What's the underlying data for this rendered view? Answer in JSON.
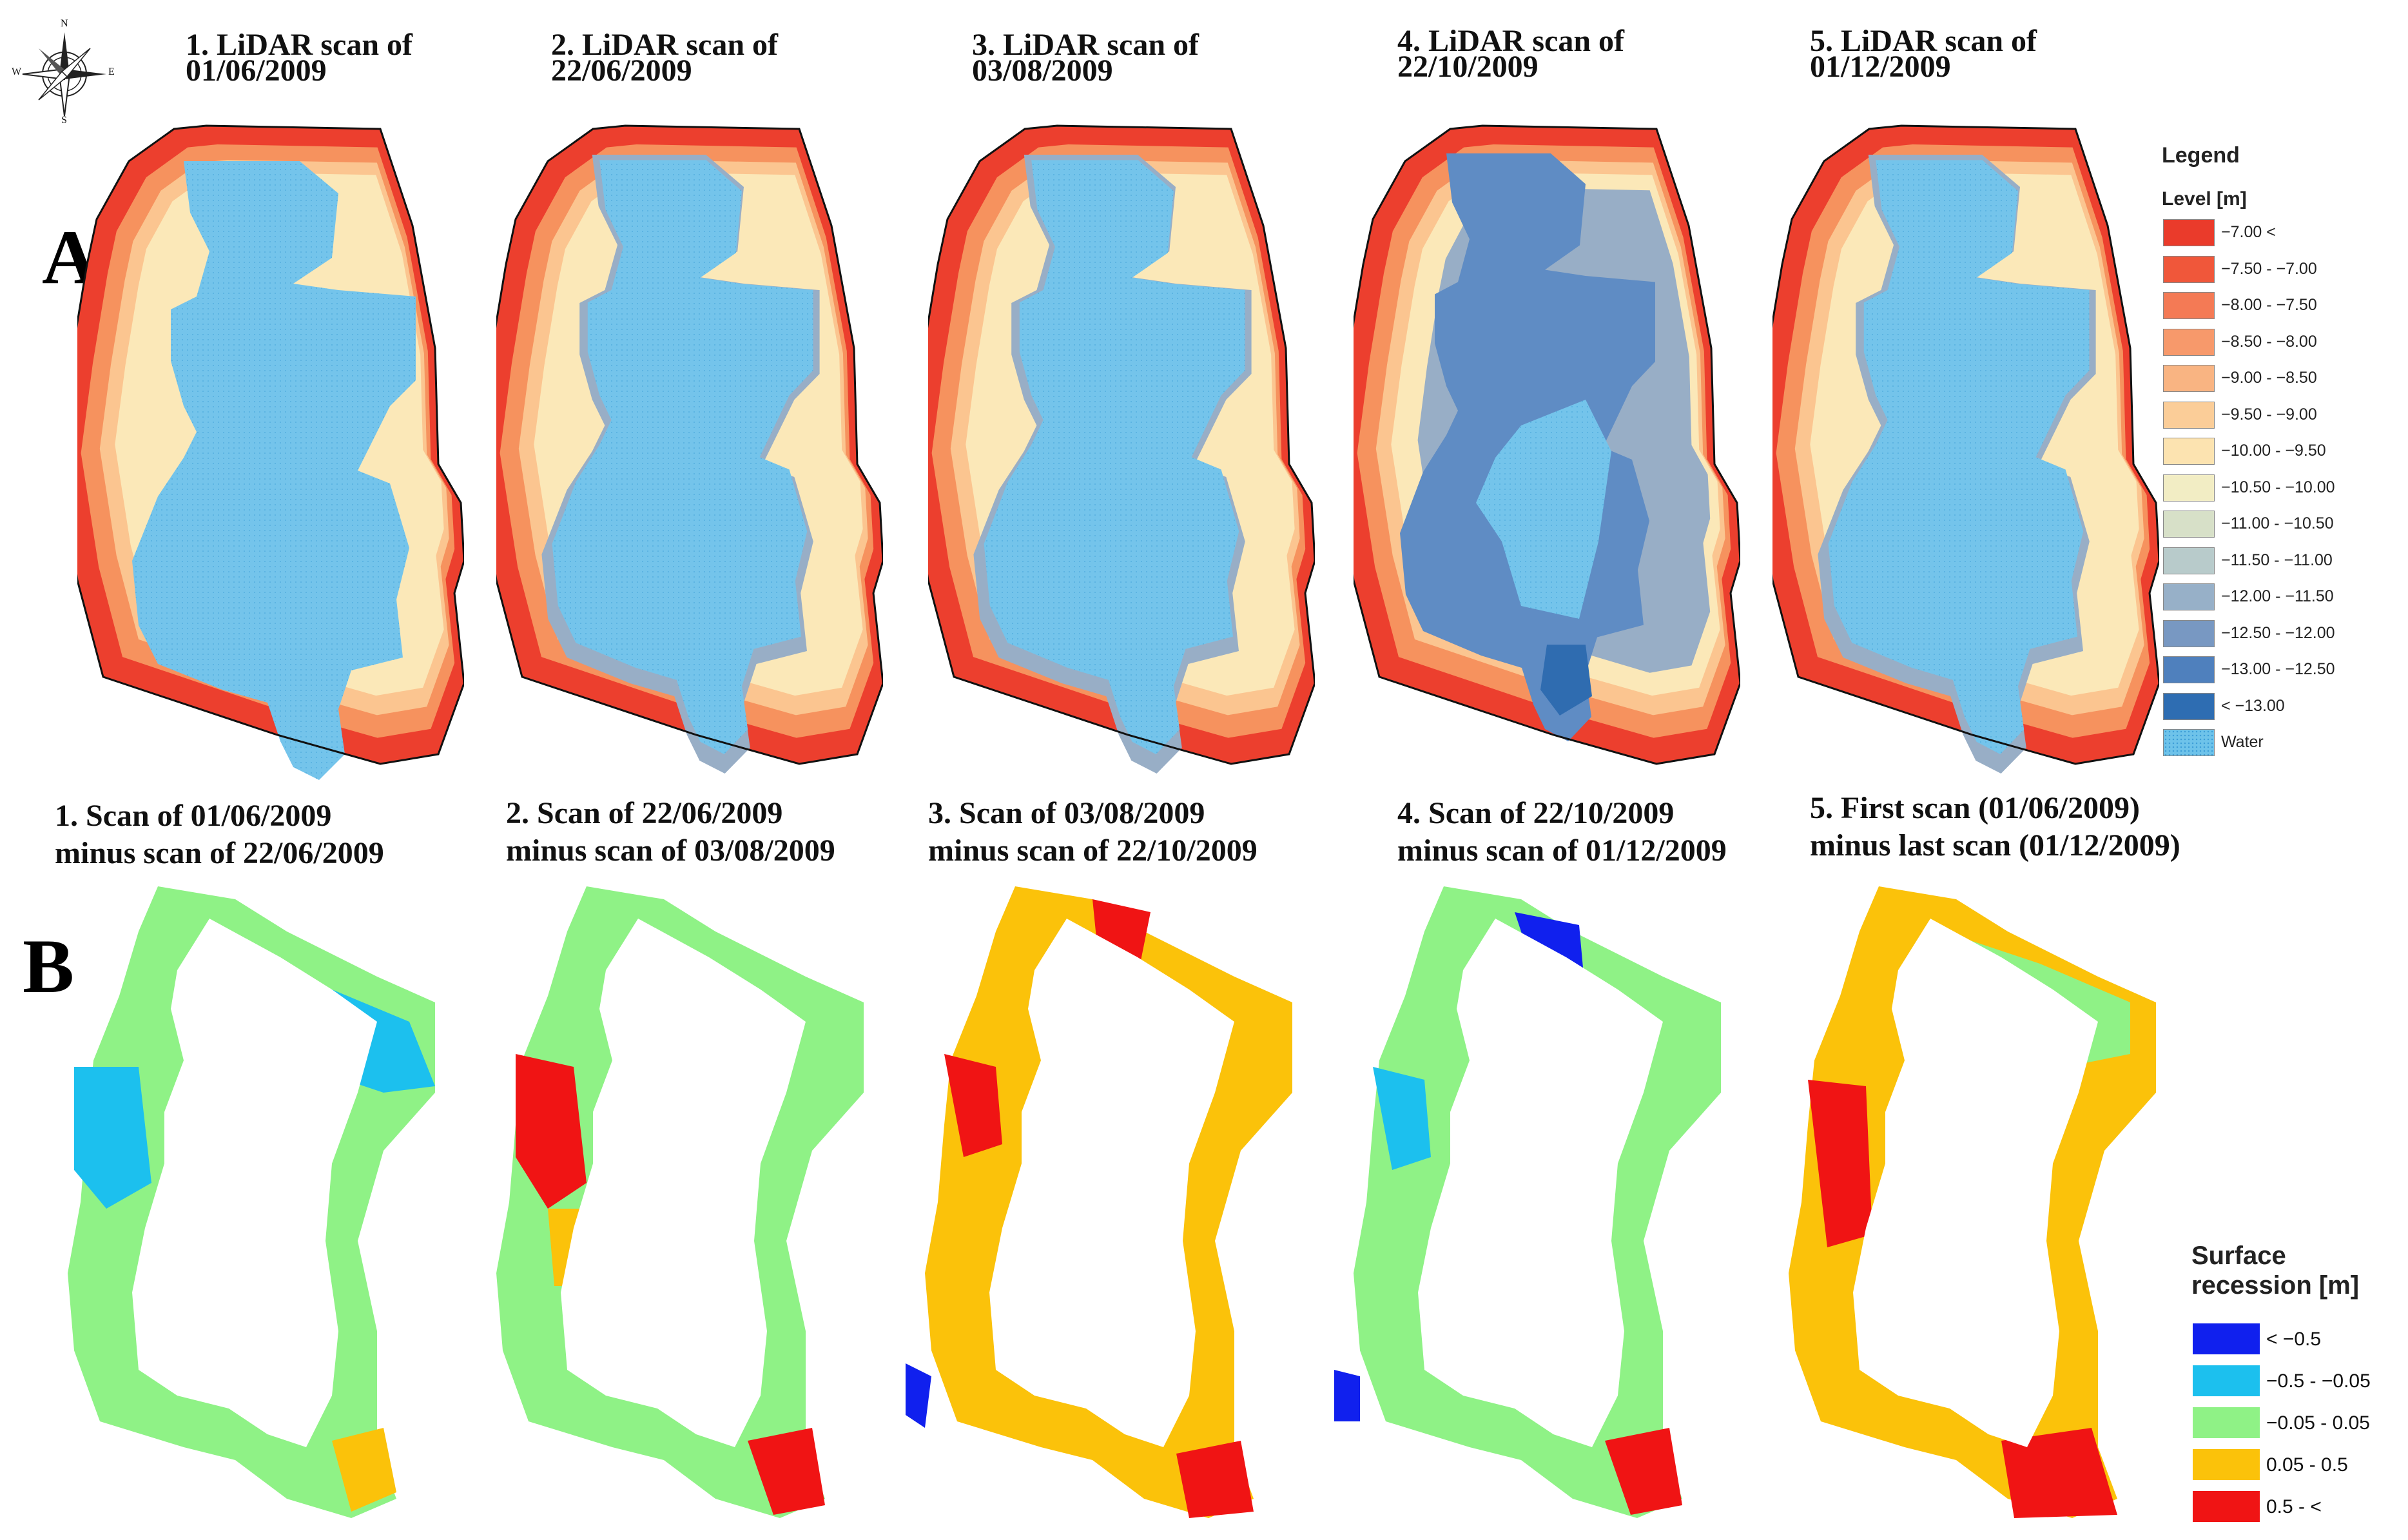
{
  "compass": {
    "n": "N",
    "s": "S",
    "e": "E",
    "w": "W"
  },
  "row_a": {
    "label": "A",
    "panels": [
      {
        "title": "1. LiDAR scan of\n01/06/2009"
      },
      {
        "title": "2. LiDAR scan of\n22/06/2009"
      },
      {
        "title": "3. LiDAR scan of\n03/08/2009"
      },
      {
        "title": "4. LiDAR scan of\n22/10/2009"
      },
      {
        "title": "5. LiDAR scan of\n01/12/2009"
      }
    ]
  },
  "row_b": {
    "label": "B",
    "panels": [
      {
        "title": "1. Scan of  01/06/2009\n minus scan of 22/06/2009"
      },
      {
        "title": "2. Scan of 22/06/2009\n minus scan of 03/08/2009"
      },
      {
        "title": "3. Scan of 03/08/2009\n minus scan of 22/10/2009"
      },
      {
        "title": "4. Scan of  22/10/2009\n minus scan of  01/12/2009"
      },
      {
        "title": "5. First scan (01/06/2009)\n minus last scan (01/12/2009)"
      }
    ]
  },
  "legend_level": {
    "title": "Legend",
    "subtitle": "Level [m]",
    "items": [
      {
        "label": "−7.00 <",
        "color": "#ea3b2b"
      },
      {
        "label": "−7.50 - −7.00",
        "color": "#f0573a"
      },
      {
        "label": "−8.00 - −7.50",
        "color": "#f47a55"
      },
      {
        "label": "−8.50 - −8.00",
        "color": "#f7996b"
      },
      {
        "label": "−9.00 - −8.50",
        "color": "#f9b482"
      },
      {
        "label": "−9.50 - −9.00",
        "color": "#fbcd98"
      },
      {
        "label": "−10.00 - −9.50",
        "color": "#fce3b0"
      },
      {
        "label": "−10.50 - −10.00",
        "color": "#f2edc4"
      },
      {
        "label": "−11.00 - −10.50",
        "color": "#d7e0c8"
      },
      {
        "label": "−11.50 - −11.00",
        "color": "#b8cbcb"
      },
      {
        "label": "−12.00 - −11.50",
        "color": "#97b0c8"
      },
      {
        "label": "−12.50 - −12.00",
        "color": "#7898c2"
      },
      {
        "label": "−13.00 - −12.50",
        "color": "#4f80bd"
      },
      {
        "label": "< −13.00",
        "color": "#2e6db2"
      },
      {
        "label": "Water",
        "color": "#6ec3ea"
      }
    ]
  },
  "legend_recession": {
    "title": "Surface\nrecession [m]",
    "items": [
      {
        "label": "< −0.5",
        "color": "#1020ee"
      },
      {
        "label": "−0.5 - −0.05",
        "color": "#1cc0ee"
      },
      {
        "label": "−0.05 - 0.05",
        "color": "#8ff286"
      },
      {
        "label": "0.05 - 0.5",
        "color": "#fbc20a"
      },
      {
        "label": "0.5 - <",
        "color": "#f01414"
      }
    ]
  },
  "palette": {
    "red": "#ec3f2e",
    "orange": "#f6925e",
    "peach": "#fbc590",
    "cream": "#fbe8b8",
    "water": "#74c4eb",
    "grey_blue": "#98aec6",
    "mid_blue": "#5f8cc4",
    "dark_blue": "#2f6cb0",
    "green": "#8ff286",
    "yellow": "#fbc20a",
    "cyan": "#1cc0ee",
    "blue": "#1020ee",
    "b_red": "#f01414"
  }
}
